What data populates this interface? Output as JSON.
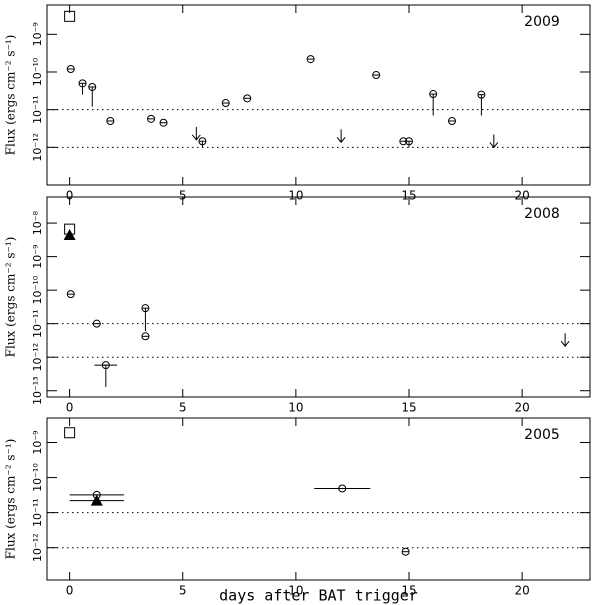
{
  "chart_data": [
    {
      "type": "scatter",
      "annotation": "2009",
      "ylabel": "Flux (ergs cm⁻² s⁻¹)",
      "xlim": [
        -1,
        23
      ],
      "xticks": [
        0,
        5,
        10,
        15,
        20
      ],
      "ylog": true,
      "ylim": [
        1e-13,
        6e-09
      ],
      "yticks": [
        {
          "value": 1e-12,
          "label": "10⁻¹²"
        },
        {
          "value": 1e-11,
          "label": "10⁻¹¹"
        },
        {
          "value": 1e-10,
          "label": "10⁻¹⁰"
        },
        {
          "value": 1e-09,
          "label": "10⁻⁹"
        }
      ],
      "reference_lines": [
        1e-11,
        1e-12
      ],
      "color": "#000000",
      "series": [
        {
          "marker": "square",
          "x": [
            0
          ],
          "values": [
            3e-09
          ]
        },
        {
          "marker": "circle",
          "x": [
            0.05,
            0.57,
            1.0,
            1.8,
            3.6,
            4.15,
            5.87,
            6.9,
            7.85,
            10.65,
            13.55,
            14.75,
            15.0,
            16.07,
            16.9,
            18.2
          ],
          "values": [
            1.2e-10,
            5e-11,
            4e-11,
            5e-12,
            5.7e-12,
            4.5e-12,
            1.45e-12,
            1.5e-11,
            2e-11,
            2.2e-10,
            8.3e-11,
            1.45e-12,
            1.45e-12,
            2.6e-11,
            5e-12,
            2.5e-11
          ],
          "ylow": [
            null,
            2.5e-11,
            1.2e-11,
            null,
            null,
            null,
            1e-12,
            null,
            null,
            null,
            null,
            null,
            1e-12,
            7e-12,
            null,
            7e-12
          ]
        },
        {
          "marker": "arrow",
          "x": [
            5.6,
            12.0,
            18.75
          ],
          "values": [
            3.5e-12,
            3e-12,
            2.2e-12
          ]
        }
      ]
    },
    {
      "type": "scatter",
      "annotation": "2008",
      "ylabel": "Flux (ergs cm⁻² s⁻¹)",
      "xlim": [
        -1,
        23
      ],
      "xticks": [
        0,
        5,
        10,
        15,
        20
      ],
      "ylog": true,
      "ylim": [
        6.5e-14,
        6e-08
      ],
      "yticks": [
        {
          "value": 1e-13,
          "label": "10⁻¹³"
        },
        {
          "value": 1e-12,
          "label": "10⁻¹²"
        },
        {
          "value": 1e-11,
          "label": "10⁻¹¹"
        },
        {
          "value": 1e-10,
          "label": "10⁻¹⁰"
        },
        {
          "value": 1e-09,
          "label": "10⁻⁹"
        },
        {
          "value": 1e-08,
          "label": "10⁻⁸"
        }
      ],
      "reference_lines": [
        1e-11,
        1e-12
      ],
      "color": "#000000",
      "series": [
        {
          "marker": "square",
          "x": [
            0
          ],
          "values": [
            6.6e-09
          ]
        },
        {
          "marker": "triangle",
          "x": [
            0
          ],
          "values": [
            4.4e-09
          ]
        },
        {
          "marker": "circle",
          "x": [
            0.05,
            1.2,
            1.6,
            3.35,
            3.35
          ],
          "values": [
            7.6e-11,
            1e-11,
            5.8e-13,
            2.9e-11,
            4.2e-12
          ],
          "ylow": [
            null,
            null,
            1.3e-13,
            6e-12,
            null
          ],
          "xerr": [
            null,
            null,
            0.5,
            null,
            null
          ]
        },
        {
          "marker": "arrow",
          "x": [
            21.9
          ],
          "values": [
            5.2e-12
          ]
        }
      ]
    },
    {
      "type": "scatter",
      "annotation": "2005",
      "ylabel": "Flux (ergs cm⁻² s⁻¹)",
      "xlabel": "days after BAT trigger",
      "xlim": [
        -1,
        23
      ],
      "xticks": [
        0,
        5,
        10,
        15,
        20
      ],
      "ylog": true,
      "ylim": [
        1.2e-13,
        5e-09
      ],
      "yticks": [
        {
          "value": 1e-12,
          "label": "10⁻¹²"
        },
        {
          "value": 1e-11,
          "label": "10⁻¹¹"
        },
        {
          "value": 1e-10,
          "label": "10⁻¹⁰"
        },
        {
          "value": 1e-09,
          "label": "10⁻⁹"
        }
      ],
      "reference_lines": [
        1e-11,
        1e-12
      ],
      "color": "#000000",
      "series": [
        {
          "marker": "square",
          "x": [
            0
          ],
          "values": [
            1.9e-09
          ]
        },
        {
          "marker": "circle",
          "x": [
            1.2,
            12.05,
            14.85
          ],
          "values": [
            3.2e-11,
            4.9e-11,
            7.7e-13
          ],
          "xerr": [
            1.2,
            1.24,
            null
          ]
        },
        {
          "marker": "triangle",
          "x": [
            1.2
          ],
          "values": [
            2.2e-11
          ],
          "xerr": [
            1.2
          ]
        }
      ]
    }
  ]
}
